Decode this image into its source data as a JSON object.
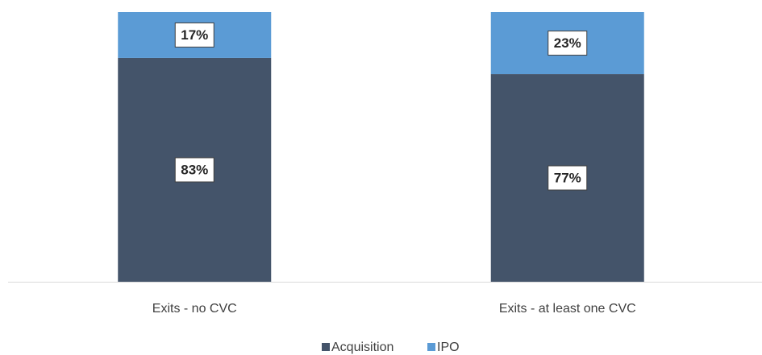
{
  "chart_data": {
    "type": "stacked-bar",
    "categories": [
      "Exits - no CVC",
      "Exits - at least one CVC"
    ],
    "series": [
      {
        "name": "Acquisition",
        "color": "#44546a",
        "values": [
          83,
          77
        ],
        "value_labels": [
          "83%",
          "77%"
        ]
      },
      {
        "name": "IPO",
        "color": "#5b9bd5",
        "values": [
          17,
          23
        ],
        "value_labels": [
          "17%",
          "23%"
        ]
      }
    ],
    "legend": "bottom"
  }
}
